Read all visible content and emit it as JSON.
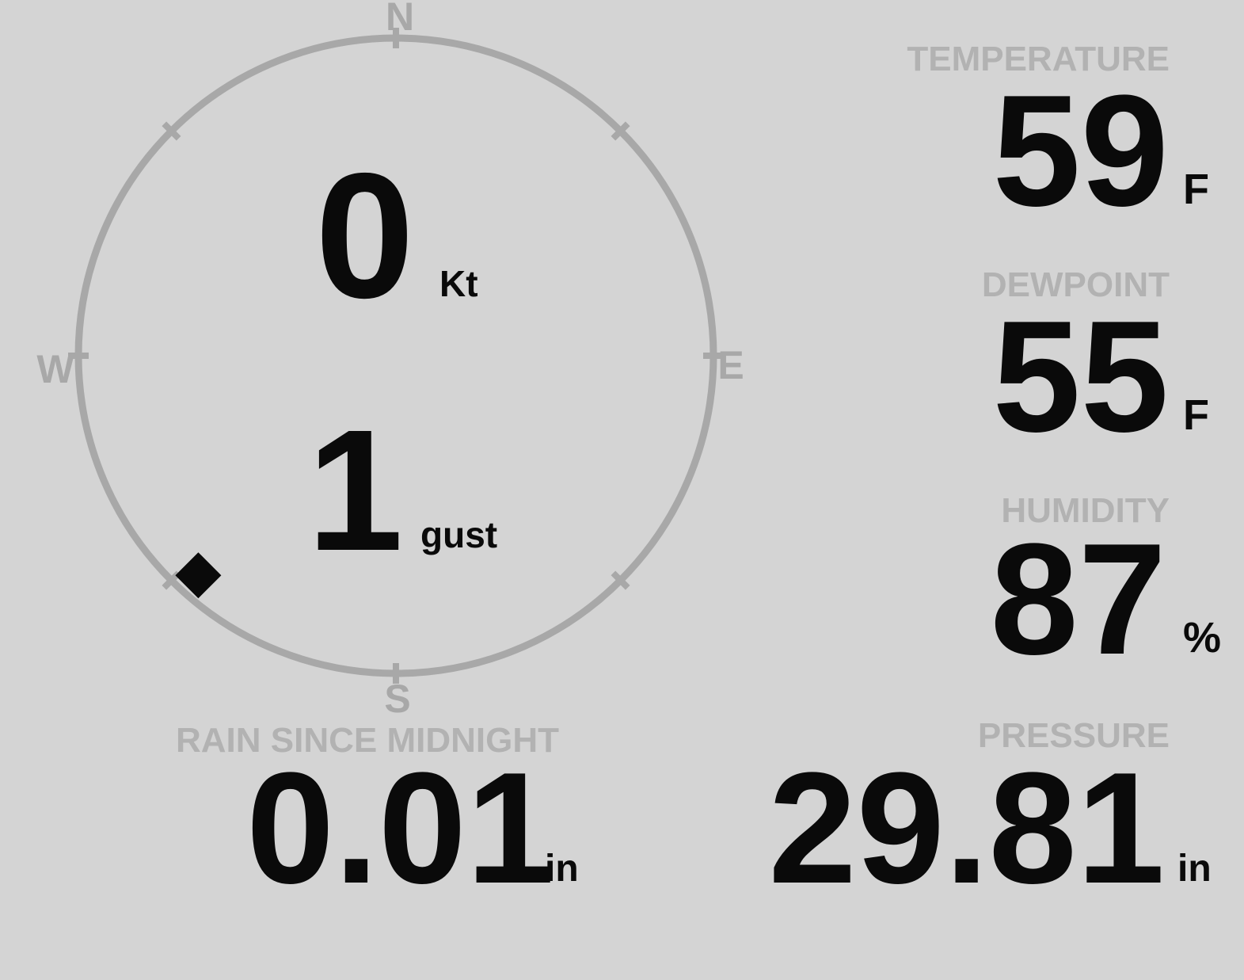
{
  "theme": {
    "background_color": "#d4d4d4",
    "value_color": "#0a0a0a",
    "label_color": "#b2b2b2",
    "compass_color": "#a8a8a8",
    "marker_color": "#0a0a0a"
  },
  "compass": {
    "cardinals": {
      "north": "N",
      "east": "E",
      "south": "S",
      "west": "W"
    },
    "wind_speed": {
      "value": "0",
      "unit": "Kt"
    },
    "wind_gust": {
      "value": "1",
      "unit": "gust"
    },
    "direction_marker": {
      "shape": "diamond",
      "bearing_deg": 222
    }
  },
  "metrics": {
    "temperature": {
      "label": "TEMPERATURE",
      "value": "59",
      "unit": "F"
    },
    "dewpoint": {
      "label": "DEWPOINT",
      "value": "55",
      "unit": "F"
    },
    "humidity": {
      "label": "HUMIDITY",
      "value": "87",
      "unit": "%"
    },
    "rain_since_midnight": {
      "label": "RAIN SINCE MIDNIGHT",
      "value": "0.01",
      "unit": "in"
    },
    "pressure": {
      "label": "PRESSURE",
      "value": "29.81",
      "unit": "in"
    }
  }
}
